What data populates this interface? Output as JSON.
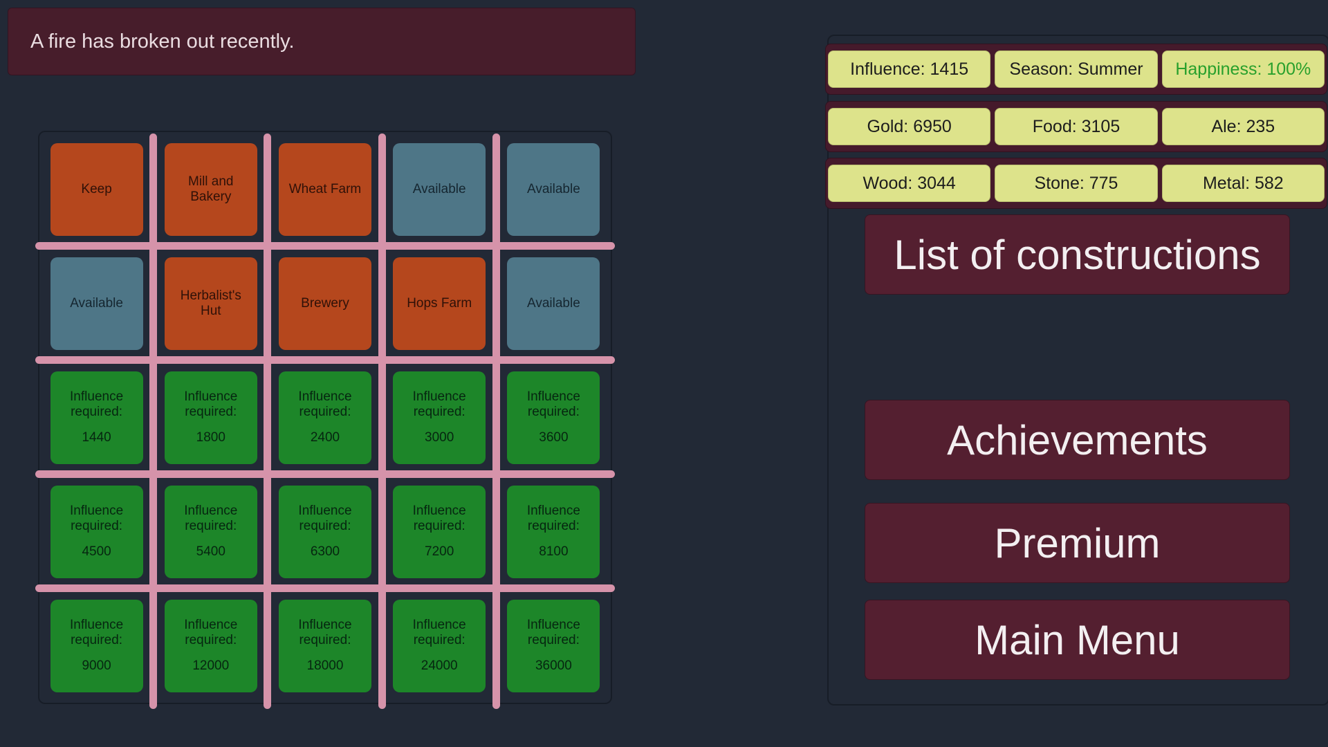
{
  "notification": {
    "text": "A fire has broken out recently."
  },
  "grid": {
    "rows": [
      [
        {
          "label": "Keep",
          "type": "building"
        },
        {
          "label": "Mill and Bakery",
          "type": "building"
        },
        {
          "label": "Wheat Farm",
          "type": "building"
        },
        {
          "label": "Available",
          "type": "available"
        },
        {
          "label": "Available",
          "type": "available"
        }
      ],
      [
        {
          "label": "Available",
          "type": "available"
        },
        {
          "label": "Herbalist's Hut",
          "type": "building"
        },
        {
          "label": "Brewery",
          "type": "building"
        },
        {
          "label": "Hops Farm",
          "type": "building"
        },
        {
          "label": "Available",
          "type": "available"
        }
      ],
      [
        {
          "label": "Influence required:",
          "value": "1440",
          "type": "locked"
        },
        {
          "label": "Influence required:",
          "value": "1800",
          "type": "locked"
        },
        {
          "label": "Influence required:",
          "value": "2400",
          "type": "locked"
        },
        {
          "label": "Influence required:",
          "value": "3000",
          "type": "locked"
        },
        {
          "label": "Influence required:",
          "value": "3600",
          "type": "locked"
        }
      ],
      [
        {
          "label": "Influence required:",
          "value": "4500",
          "type": "locked"
        },
        {
          "label": "Influence required:",
          "value": "5400",
          "type": "locked"
        },
        {
          "label": "Influence required:",
          "value": "6300",
          "type": "locked"
        },
        {
          "label": "Influence required:",
          "value": "7200",
          "type": "locked"
        },
        {
          "label": "Influence required:",
          "value": "8100",
          "type": "locked"
        }
      ],
      [
        {
          "label": "Influence required:",
          "value": "9000",
          "type": "locked"
        },
        {
          "label": "Influence required:",
          "value": "12000",
          "type": "locked"
        },
        {
          "label": "Influence required:",
          "value": "18000",
          "type": "locked"
        },
        {
          "label": "Influence required:",
          "value": "24000",
          "type": "locked"
        },
        {
          "label": "Influence required:",
          "value": "36000",
          "type": "locked"
        }
      ]
    ]
  },
  "resources": {
    "row1": [
      "Influence: 1415",
      "Season: Summer",
      "Happiness: 100%"
    ],
    "row2": [
      "Gold: 6950",
      "Food: 3105",
      "Ale: 235"
    ],
    "row3": [
      "Wood: 3044",
      "Stone: 775",
      "Metal: 582"
    ]
  },
  "menu": {
    "list_of_constructions": "List of constructions",
    "achievements": "Achievements",
    "premium": "Premium",
    "main_menu": "Main Menu"
  },
  "colors": {
    "background": "#222936",
    "panel_maroon": "#451a2b",
    "button_maroon": "#541f30",
    "notification_maroon": "#471d2b",
    "badge_yellow": "#dde38b",
    "happiness_green": "#28a02c",
    "building_tile_orange": "#b5471d",
    "available_tile_blue": "#4e7687",
    "locked_tile_green": "#1d8629",
    "separator_pink": "#d693aa",
    "button_text": "#f3eff1"
  }
}
